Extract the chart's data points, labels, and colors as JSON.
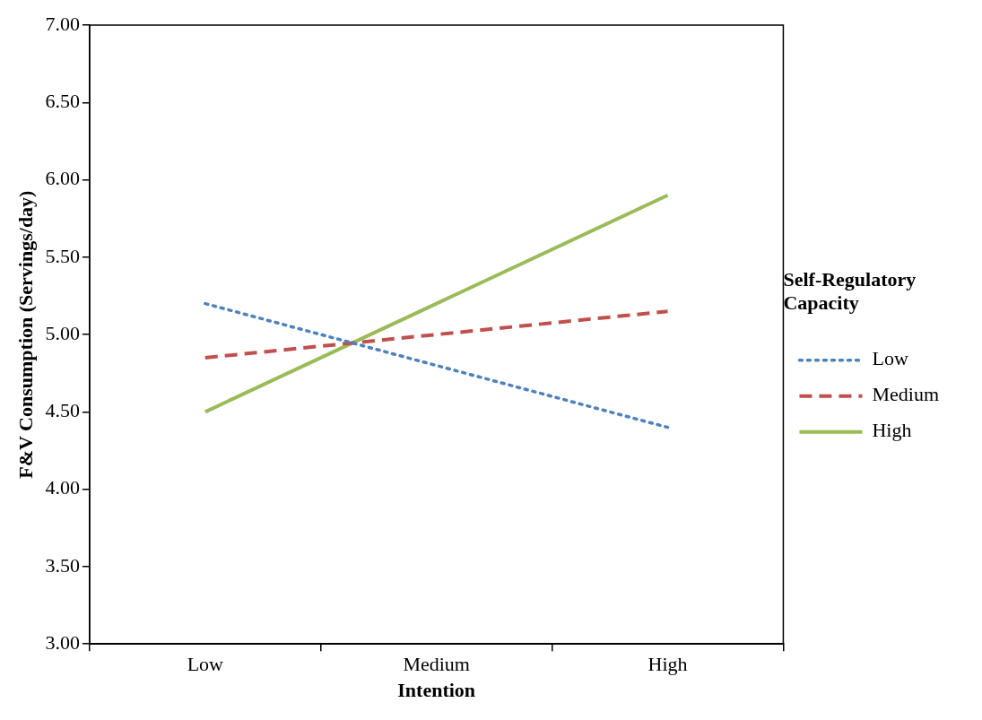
{
  "chart_data": {
    "type": "line",
    "xlabel": "Intention",
    "ylabel": "F&V Consumption (Servings/day)",
    "legend_title": "Self-Regulatory Capacity",
    "categories": [
      "Low",
      "Medium",
      "High"
    ],
    "series": [
      {
        "name": "Low",
        "color": "#4f81bd",
        "values": [
          5.2,
          4.8,
          4.4
        ],
        "line_style": "dotted"
      },
      {
        "name": "Medium",
        "color": "#c0504d",
        "values": [
          4.85,
          5.0,
          5.15
        ],
        "line_style": "dashed"
      },
      {
        "name": "High",
        "color": "#9bbb59",
        "values": [
          4.5,
          5.2,
          5.9
        ],
        "line_style": "solid"
      }
    ],
    "ylim": [
      3,
      7
    ],
    "yticks": [
      {
        "value": 3,
        "label": "3.00"
      },
      {
        "value": 3.5,
        "label": "3.50"
      },
      {
        "value": 4,
        "label": "4.00"
      },
      {
        "value": 4.5,
        "label": "4.50"
      },
      {
        "value": 5,
        "label": "5.00"
      },
      {
        "value": 5.5,
        "label": "5.50"
      },
      {
        "value": 6,
        "label": "6.00"
      },
      {
        "value": 6.5,
        "label": "6.50"
      },
      {
        "value": 7,
        "label": "7.00"
      }
    ],
    "grid": false,
    "legend": "right",
    "marker": "none"
  }
}
